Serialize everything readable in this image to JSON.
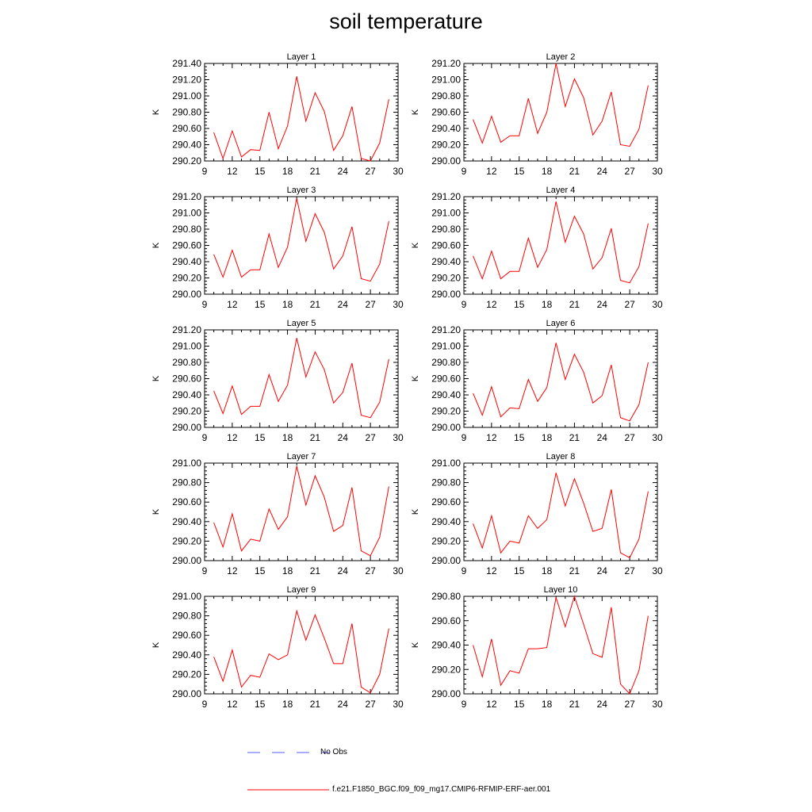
{
  "title": "soil temperature",
  "legend": {
    "items": [
      {
        "label": "No Obs",
        "color": "#5a5aff",
        "style": "dashed"
      },
      {
        "label": "f.e21.F1850_BGC.f09_f09_mg17.CMIP6-RFMIP-ERF-aer.001",
        "color": "#ff0000",
        "style": "solid"
      }
    ]
  },
  "chart_data": [
    {
      "type": "line",
      "title": "Layer 1",
      "ylabel": "K",
      "xlim": [
        9,
        30
      ],
      "xticks": [
        "9",
        "12",
        "15",
        "18",
        "21",
        "24",
        "27",
        "30"
      ],
      "ylim": [
        290.2,
        291.4
      ],
      "yticks": [
        "290.20",
        "290.40",
        "290.60",
        "290.80",
        "291.00",
        "291.20",
        "291.40"
      ],
      "series": [
        {
          "color": "#ff0000",
          "x": [
            10,
            11,
            12,
            13,
            14,
            15,
            16,
            17,
            18,
            19,
            20,
            21,
            22,
            23,
            24,
            25,
            26,
            27,
            28,
            29
          ],
          "values": [
            290.55,
            290.23,
            290.57,
            290.25,
            290.34,
            290.33,
            290.8,
            290.35,
            290.63,
            291.24,
            290.69,
            291.04,
            290.81,
            290.33,
            290.51,
            290.87,
            290.23,
            290.2,
            290.42,
            290.96
          ]
        }
      ]
    },
    {
      "type": "line",
      "title": "Layer 2",
      "ylabel": "K",
      "xlim": [
        9,
        30
      ],
      "xticks": [
        "9",
        "12",
        "15",
        "18",
        "21",
        "24",
        "27",
        "30"
      ],
      "ylim": [
        290.0,
        291.2
      ],
      "yticks": [
        "290.00",
        "290.20",
        "290.40",
        "290.60",
        "290.80",
        "291.00",
        "291.20"
      ],
      "series": [
        {
          "color": "#ff0000",
          "x": [
            10,
            11,
            12,
            13,
            14,
            15,
            16,
            17,
            18,
            19,
            20,
            21,
            22,
            23,
            24,
            25,
            26,
            27,
            28,
            29
          ],
          "values": [
            290.51,
            290.22,
            290.55,
            290.23,
            290.31,
            290.31,
            290.77,
            290.34,
            290.6,
            291.2,
            290.67,
            291.01,
            290.78,
            290.32,
            290.49,
            290.85,
            290.2,
            290.18,
            290.39,
            290.93
          ]
        }
      ]
    },
    {
      "type": "line",
      "title": "Layer 3",
      "ylabel": "K",
      "xlim": [
        9,
        30
      ],
      "xticks": [
        "9",
        "12",
        "15",
        "18",
        "21",
        "24",
        "27",
        "30"
      ],
      "ylim": [
        290.0,
        291.2
      ],
      "yticks": [
        "290.00",
        "290.20",
        "290.40",
        "290.60",
        "290.80",
        "291.00",
        "291.20"
      ],
      "series": [
        {
          "color": "#ff0000",
          "x": [
            10,
            11,
            12,
            13,
            14,
            15,
            16,
            17,
            18,
            19,
            20,
            21,
            22,
            23,
            24,
            25,
            26,
            27,
            28,
            29
          ],
          "values": [
            290.49,
            290.21,
            290.54,
            290.21,
            290.3,
            290.3,
            290.74,
            290.33,
            290.58,
            291.18,
            290.65,
            290.99,
            290.76,
            290.31,
            290.47,
            290.83,
            290.19,
            290.16,
            290.37,
            290.9
          ]
        }
      ]
    },
    {
      "type": "line",
      "title": "Layer 4",
      "ylabel": "K",
      "xlim": [
        9,
        30
      ],
      "xticks": [
        "9",
        "12",
        "15",
        "18",
        "21",
        "24",
        "27",
        "30"
      ],
      "ylim": [
        290.0,
        291.2
      ],
      "yticks": [
        "290.00",
        "290.20",
        "290.40",
        "290.60",
        "290.80",
        "291.00",
        "291.20"
      ],
      "series": [
        {
          "color": "#ff0000",
          "x": [
            10,
            11,
            12,
            13,
            14,
            15,
            16,
            17,
            18,
            19,
            20,
            21,
            22,
            23,
            24,
            25,
            26,
            27,
            28,
            29
          ],
          "values": [
            290.47,
            290.19,
            290.53,
            290.19,
            290.28,
            290.28,
            290.69,
            290.33,
            290.55,
            291.14,
            290.64,
            290.96,
            290.74,
            290.31,
            290.45,
            290.81,
            290.17,
            290.14,
            290.34,
            290.87
          ]
        }
      ]
    },
    {
      "type": "line",
      "title": "Layer 5",
      "ylabel": "K",
      "xlim": [
        9,
        30
      ],
      "xticks": [
        "9",
        "12",
        "15",
        "18",
        "21",
        "24",
        "27",
        "30"
      ],
      "ylim": [
        290.0,
        291.2
      ],
      "yticks": [
        "290.00",
        "290.20",
        "290.40",
        "290.60",
        "290.80",
        "291.00",
        "291.20"
      ],
      "series": [
        {
          "color": "#ff0000",
          "x": [
            10,
            11,
            12,
            13,
            14,
            15,
            16,
            17,
            18,
            19,
            20,
            21,
            22,
            23,
            24,
            25,
            26,
            27,
            28,
            29
          ],
          "values": [
            290.45,
            290.17,
            290.51,
            290.16,
            290.26,
            290.26,
            290.65,
            290.32,
            290.52,
            291.1,
            290.62,
            290.93,
            290.71,
            290.3,
            290.43,
            290.79,
            290.15,
            290.12,
            290.31,
            290.84
          ]
        }
      ]
    },
    {
      "type": "line",
      "title": "Layer 6",
      "ylabel": "K",
      "xlim": [
        9,
        30
      ],
      "xticks": [
        "9",
        "12",
        "15",
        "18",
        "21",
        "24",
        "27",
        "30"
      ],
      "ylim": [
        290.0,
        291.2
      ],
      "yticks": [
        "290.00",
        "290.20",
        "290.40",
        "290.60",
        "290.80",
        "291.00",
        "291.20"
      ],
      "series": [
        {
          "color": "#ff0000",
          "x": [
            10,
            11,
            12,
            13,
            14,
            15,
            16,
            17,
            18,
            19,
            20,
            21,
            22,
            23,
            24,
            25,
            26,
            27,
            28,
            29
          ],
          "values": [
            290.42,
            290.15,
            290.5,
            290.13,
            290.24,
            290.23,
            290.59,
            290.32,
            290.49,
            291.04,
            290.59,
            290.9,
            290.68,
            290.3,
            290.39,
            290.77,
            290.12,
            290.08,
            290.28,
            290.8
          ]
        }
      ]
    },
    {
      "type": "line",
      "title": "Layer 7",
      "ylabel": "K",
      "xlim": [
        9,
        30
      ],
      "xticks": [
        "9",
        "12",
        "15",
        "18",
        "21",
        "24",
        "27",
        "30"
      ],
      "ylim": [
        290.0,
        291.0
      ],
      "yticks": [
        "290.00",
        "290.20",
        "290.40",
        "290.60",
        "290.80",
        "291.00"
      ],
      "series": [
        {
          "color": "#ff0000",
          "x": [
            10,
            11,
            12,
            13,
            14,
            15,
            16,
            17,
            18,
            19,
            20,
            21,
            22,
            23,
            24,
            25,
            26,
            27,
            28,
            29
          ],
          "values": [
            290.39,
            290.14,
            290.48,
            290.1,
            290.22,
            290.2,
            290.53,
            290.32,
            290.45,
            290.97,
            290.57,
            290.87,
            290.65,
            290.3,
            290.36,
            290.75,
            290.1,
            290.05,
            290.24,
            290.76
          ]
        }
      ]
    },
    {
      "type": "line",
      "title": "Layer 8",
      "ylabel": "K",
      "xlim": [
        9,
        30
      ],
      "xticks": [
        "9",
        "12",
        "15",
        "18",
        "21",
        "24",
        "27",
        "30"
      ],
      "ylim": [
        290.0,
        291.0
      ],
      "yticks": [
        "290.00",
        "290.20",
        "290.40",
        "290.60",
        "290.80",
        "291.00"
      ],
      "series": [
        {
          "color": "#ff0000",
          "x": [
            10,
            11,
            12,
            13,
            14,
            15,
            16,
            17,
            18,
            19,
            20,
            21,
            22,
            23,
            24,
            25,
            26,
            27,
            28,
            29
          ],
          "values": [
            290.38,
            290.13,
            290.46,
            290.08,
            290.2,
            290.18,
            290.46,
            290.33,
            290.42,
            290.9,
            290.56,
            290.84,
            290.59,
            290.3,
            290.33,
            290.73,
            290.08,
            290.03,
            290.22,
            290.71
          ]
        }
      ]
    },
    {
      "type": "line",
      "title": "Layer 9",
      "ylabel": "K",
      "xlim": [
        9,
        30
      ],
      "xticks": [
        "9",
        "12",
        "15",
        "18",
        "21",
        "24",
        "27",
        "30"
      ],
      "ylim": [
        290.0,
        291.0
      ],
      "yticks": [
        "290.00",
        "290.20",
        "290.40",
        "290.60",
        "290.80",
        "291.00"
      ],
      "series": [
        {
          "color": "#ff0000",
          "x": [
            10,
            11,
            12,
            13,
            14,
            15,
            16,
            17,
            18,
            19,
            20,
            21,
            22,
            23,
            24,
            25,
            26,
            27,
            28,
            29
          ],
          "values": [
            290.38,
            290.13,
            290.45,
            290.07,
            290.19,
            290.17,
            290.41,
            290.35,
            290.4,
            290.85,
            290.55,
            290.81,
            290.57,
            290.31,
            290.31,
            290.72,
            290.07,
            290.01,
            290.2,
            290.67
          ]
        }
      ]
    },
    {
      "type": "line",
      "title": "Layer 10",
      "ylabel": "K",
      "xlim": [
        9,
        30
      ],
      "xticks": [
        "9",
        "12",
        "15",
        "18",
        "21",
        "24",
        "27",
        "30"
      ],
      "ylim": [
        290.0,
        290.8
      ],
      "yticks": [
        "290.00",
        "290.20",
        "290.40",
        "290.60",
        "290.80"
      ],
      "series": [
        {
          "color": "#ff0000",
          "x": [
            10,
            11,
            12,
            13,
            14,
            15,
            16,
            17,
            18,
            19,
            20,
            21,
            22,
            23,
            24,
            25,
            26,
            27,
            28,
            29
          ],
          "values": [
            290.4,
            290.14,
            290.45,
            290.07,
            290.19,
            290.17,
            290.37,
            290.37,
            290.38,
            290.79,
            290.55,
            290.8,
            290.57,
            290.33,
            290.3,
            290.71,
            290.08,
            290.0,
            290.19,
            290.64
          ]
        }
      ]
    }
  ]
}
